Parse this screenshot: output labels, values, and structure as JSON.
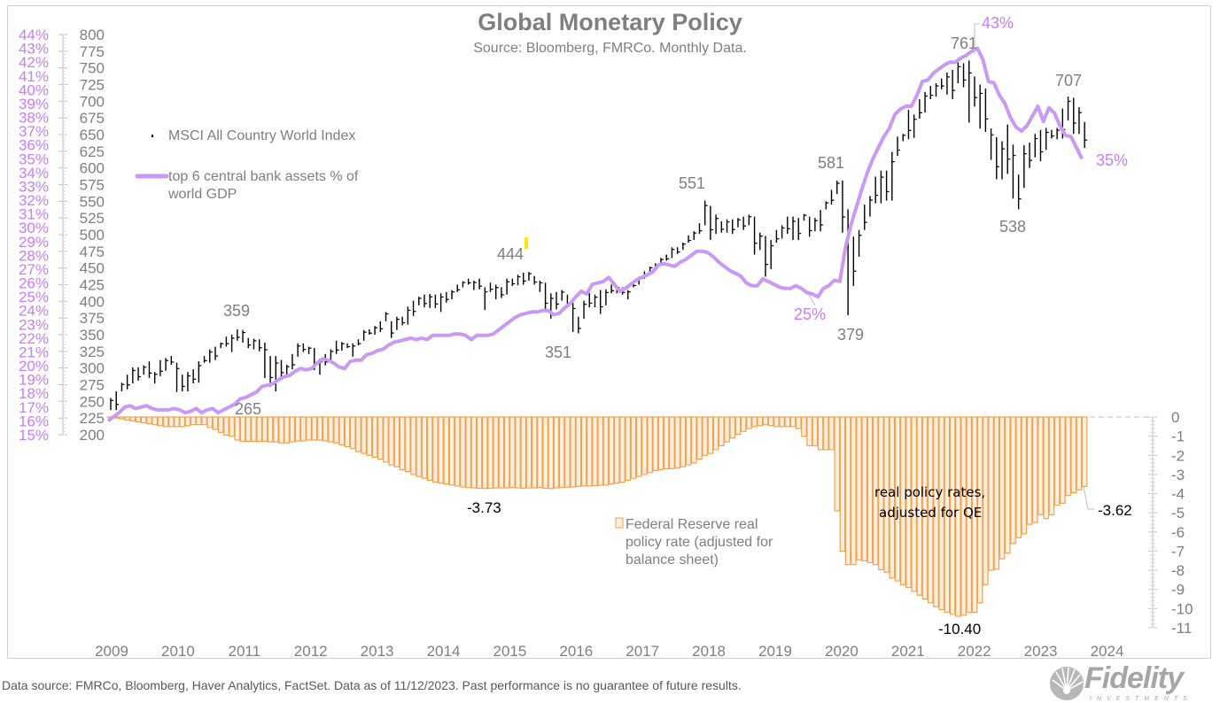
{
  "chart_data": {
    "type": "bar+line",
    "title": "Global Monetary Policy",
    "subtitle": "Source: Bloomberg, FMRCo.  Monthly Data.",
    "x_start": "2009-01",
    "x_frequency": "monthly",
    "x_tick_labels": [
      "2009",
      "2010",
      "2011",
      "2012",
      "2013",
      "2014",
      "2015",
      "2016",
      "2017",
      "2018",
      "2019",
      "2020",
      "2021",
      "2022",
      "2023",
      "2024"
    ],
    "left_axis_pct": {
      "ylim": [
        15,
        44
      ],
      "tick_labels": [
        "44%",
        "43%",
        "42%",
        "41%",
        "40%",
        "39%",
        "38%",
        "37%",
        "36%",
        "35%",
        "34%",
        "33%",
        "32%",
        "31%",
        "30%",
        "29%",
        "28%",
        "27%",
        "26%",
        "25%",
        "24%",
        "23%",
        "22%",
        "21%",
        "20%",
        "19%",
        "18%",
        "17%",
        "16%",
        "15%"
      ]
    },
    "left_axis_index": {
      "ylim": [
        200,
        800
      ],
      "tick_labels": [
        "800",
        "775",
        "750",
        "725",
        "700",
        "675",
        "650",
        "625",
        "600",
        "575",
        "550",
        "525",
        "500",
        "475",
        "450",
        "425",
        "400",
        "375",
        "350",
        "325",
        "300",
        "275",
        "250",
        "225",
        "200"
      ]
    },
    "right_axis": {
      "ylim": [
        -11,
        0
      ],
      "tick_labels": [
        "0",
        "-1",
        "-2",
        "-3",
        "-4",
        "-5",
        "-6",
        "-7",
        "-8",
        "-9",
        "-10",
        "-11"
      ]
    },
    "series": [
      {
        "name": "MSCI All Country World Index",
        "type": "high-low bars",
        "axis": "left_axis_index",
        "color": "#000000",
        "low_high": [
          [
            237,
            255
          ],
          [
            237,
            265
          ],
          [
            265,
            278
          ],
          [
            268,
            290
          ],
          [
            277,
            301
          ],
          [
            281,
            301
          ],
          [
            290,
            304
          ],
          [
            285,
            310
          ],
          [
            277,
            294
          ],
          [
            288,
            312
          ],
          [
            296,
            315
          ],
          [
            305,
            318
          ],
          [
            264,
            308
          ],
          [
            265,
            290
          ],
          [
            265,
            294
          ],
          [
            277,
            298
          ],
          [
            278,
            310
          ],
          [
            308,
            318
          ],
          [
            308,
            328
          ],
          [
            312,
            332
          ],
          [
            330,
            338
          ],
          [
            332,
            347
          ],
          [
            324,
            350
          ],
          [
            341,
            358
          ],
          [
            338,
            357
          ],
          [
            330,
            345
          ],
          [
            328,
            344
          ],
          [
            325,
            343
          ],
          [
            285,
            338
          ],
          [
            272,
            318
          ],
          [
            265,
            318
          ],
          [
            285,
            312
          ],
          [
            290,
            305
          ],
          [
            298,
            321
          ],
          [
            317,
            337
          ],
          [
            324,
            337
          ],
          [
            321,
            332
          ],
          [
            297,
            330
          ],
          [
            290,
            314
          ],
          [
            304,
            321
          ],
          [
            312,
            328
          ],
          [
            321,
            341
          ],
          [
            326,
            339
          ],
          [
            330,
            337
          ],
          [
            317,
            337
          ],
          [
            334,
            343
          ],
          [
            341,
            357
          ],
          [
            350,
            358
          ],
          [
            350,
            363
          ],
          [
            354,
            370
          ],
          [
            370,
            384
          ],
          [
            345,
            370
          ],
          [
            357,
            377
          ],
          [
            364,
            377
          ],
          [
            365,
            392
          ],
          [
            378,
            401
          ],
          [
            394,
            407
          ],
          [
            391,
            410
          ],
          [
            390,
            411
          ],
          [
            390,
            410
          ],
          [
            384,
            412
          ],
          [
            398,
            414
          ],
          [
            403,
            417
          ],
          [
            414,
            425
          ],
          [
            421,
            430
          ],
          [
            425,
            434
          ],
          [
            417,
            431
          ],
          [
            418,
            434
          ],
          [
            387,
            421
          ],
          [
            414,
            428
          ],
          [
            403,
            425
          ],
          [
            405,
            421
          ],
          [
            410,
            434
          ],
          [
            423,
            434
          ],
          [
            424,
            440
          ],
          [
            425,
            443
          ],
          [
            431,
            444
          ],
          [
            425,
            438
          ],
          [
            414,
            431
          ],
          [
            384,
            428
          ],
          [
            374,
            412
          ],
          [
            388,
            414
          ],
          [
            401,
            417
          ],
          [
            391,
            410
          ],
          [
            354,
            398
          ],
          [
            352,
            377
          ],
          [
            374,
            401
          ],
          [
            391,
            412
          ],
          [
            391,
            410
          ],
          [
            381,
            417
          ],
          [
            394,
            418
          ],
          [
            412,
            425
          ],
          [
            412,
            423
          ],
          [
            410,
            421
          ],
          [
            403,
            417
          ],
          [
            421,
            430
          ],
          [
            425,
            437
          ],
          [
            434,
            445
          ],
          [
            443,
            452
          ],
          [
            448,
            457
          ],
          [
            454,
            465
          ],
          [
            461,
            470
          ],
          [
            465,
            481
          ],
          [
            471,
            481
          ],
          [
            477,
            488
          ],
          [
            488,
            499
          ],
          [
            492,
            505
          ],
          [
            501,
            517
          ],
          [
            514,
            551
          ],
          [
            492,
            543
          ],
          [
            501,
            530
          ],
          [
            503,
            520
          ],
          [
            503,
            523
          ],
          [
            501,
            523
          ],
          [
            511,
            525
          ],
          [
            507,
            527
          ],
          [
            514,
            530
          ],
          [
            470,
            527
          ],
          [
            477,
            503
          ],
          [
            437,
            498
          ],
          [
            448,
            492
          ],
          [
            488,
            507
          ],
          [
            494,
            514
          ],
          [
            501,
            527
          ],
          [
            492,
            527
          ],
          [
            492,
            525
          ],
          [
            521,
            531
          ],
          [
            497,
            527
          ],
          [
            505,
            525
          ],
          [
            505,
            537
          ],
          [
            538,
            550
          ],
          [
            545,
            567
          ],
          [
            561,
            581
          ],
          [
            503,
            581
          ],
          [
            379,
            538
          ],
          [
            423,
            497
          ],
          [
            467,
            507
          ],
          [
            507,
            545
          ],
          [
            527,
            558
          ],
          [
            547,
            587
          ],
          [
            547,
            596
          ],
          [
            551,
            596
          ],
          [
            551,
            624
          ],
          [
            618,
            647
          ],
          [
            640,
            651
          ],
          [
            643,
            687
          ],
          [
            645,
            680
          ],
          [
            674,
            703
          ],
          [
            683,
            714
          ],
          [
            703,
            723
          ],
          [
            707,
            727
          ],
          [
            718,
            734
          ],
          [
            710,
            743
          ],
          [
            703,
            747
          ],
          [
            727,
            758
          ],
          [
            721,
            757
          ],
          [
            668,
            761
          ],
          [
            692,
            737
          ],
          [
            659,
            725
          ],
          [
            654,
            719
          ],
          [
            612,
            659
          ],
          [
            583,
            646
          ],
          [
            583,
            640
          ],
          [
            591,
            665
          ],
          [
            554,
            635
          ],
          [
            538,
            590
          ],
          [
            570,
            634
          ],
          [
            600,
            638
          ],
          [
            616,
            651
          ],
          [
            610,
            657
          ],
          [
            627,
            660
          ],
          [
            644,
            657
          ],
          [
            643,
            660
          ],
          [
            644,
            689
          ],
          [
            671,
            707
          ],
          [
            651,
            705
          ],
          [
            651,
            691
          ],
          [
            630,
            669
          ]
        ]
      },
      {
        "name": "top 6 central bank assets % of world GDP",
        "type": "line",
        "axis": "left_axis_pct",
        "color": "#c99af5",
        "values": [
          16.0,
          16.3,
          16.6,
          17.0,
          17.1,
          16.9,
          17.0,
          17.1,
          16.9,
          16.8,
          16.8,
          16.8,
          16.9,
          16.8,
          16.6,
          16.7,
          16.9,
          16.6,
          16.8,
          16.9,
          16.6,
          16.8,
          17.0,
          17.2,
          17.6,
          17.7,
          17.9,
          18.1,
          18.5,
          18.6,
          18.7,
          19.0,
          19.2,
          19.3,
          19.6,
          19.8,
          19.7,
          19.8,
          20.2,
          20.5,
          20.4,
          20.2,
          19.9,
          19.8,
          20.3,
          20.4,
          20.4,
          20.8,
          20.9,
          21.1,
          21.2,
          21.5,
          21.7,
          21.8,
          21.9,
          22.0,
          21.9,
          22.0,
          21.9,
          22.2,
          22.2,
          22.2,
          22.2,
          22.3,
          22.3,
          22.2,
          21.9,
          22.2,
          22.2,
          22.2,
          22.3,
          22.6,
          22.9,
          23.2,
          23.5,
          23.7,
          23.8,
          23.9,
          23.9,
          24.0,
          24.0,
          23.7,
          23.8,
          24.2,
          24.5,
          25.0,
          25.4,
          25.2,
          25.9,
          26.0,
          26.1,
          26.4,
          25.9,
          25.4,
          25.6,
          25.9,
          26.2,
          26.4,
          26.6,
          26.8,
          27.3,
          27.4,
          27.3,
          27.2,
          27.5,
          27.7,
          28.0,
          28.3,
          28.3,
          28.2,
          27.9,
          27.5,
          27.2,
          26.9,
          26.7,
          26.5,
          26.0,
          25.8,
          25.8,
          26.3,
          26.1,
          25.9,
          25.7,
          25.6,
          25.6,
          25.8,
          25.6,
          25.3,
          25.2,
          25.0,
          25.6,
          25.8,
          26.2,
          26.1,
          28.5,
          30.2,
          31.5,
          32.8,
          34.0,
          35.0,
          35.8,
          36.6,
          37.2,
          38.2,
          38.6,
          38.8,
          38.8,
          39.6,
          40.6,
          40.7,
          41.2,
          41.5,
          41.8,
          42.0,
          42.0,
          42.3,
          42.5,
          42.8,
          43.0,
          42.2,
          40.6,
          40.5,
          39.6,
          39.0,
          38.0,
          37.3,
          37.0,
          37.4,
          38.1,
          38.8,
          37.7,
          38.7,
          38.3,
          37.4,
          36.7,
          36.6,
          35.8,
          35.0
        ]
      },
      {
        "name": "Federal Reserve real policy rate (adjusted for balance sheet)",
        "type": "bar",
        "axis": "right_axis",
        "color": "#f4a14a",
        "fill": "#fdf0e2",
        "values": [
          0,
          -0.05,
          -0.1,
          -0.15,
          -0.2,
          -0.25,
          -0.3,
          -0.35,
          -0.4,
          -0.45,
          -0.5,
          -0.5,
          -0.5,
          -0.5,
          -0.45,
          -0.4,
          -0.4,
          -0.4,
          -0.55,
          -0.65,
          -0.8,
          -0.95,
          -1.0,
          -1.2,
          -1.27,
          -1.27,
          -1.27,
          -1.27,
          -1.27,
          -1.3,
          -1.3,
          -1.35,
          -1.35,
          -1.3,
          -1.25,
          -1.25,
          -1.2,
          -1.2,
          -1.2,
          -1.25,
          -1.3,
          -1.35,
          -1.45,
          -1.55,
          -1.65,
          -1.8,
          -1.9,
          -2.0,
          -2.1,
          -2.2,
          -2.35,
          -2.5,
          -2.6,
          -2.75,
          -2.85,
          -3.0,
          -3.1,
          -3.2,
          -3.3,
          -3.4,
          -3.45,
          -3.5,
          -3.55,
          -3.6,
          -3.65,
          -3.68,
          -3.7,
          -3.72,
          -3.73,
          -3.72,
          -3.7,
          -3.7,
          -3.7,
          -3.68,
          -3.7,
          -3.72,
          -3.7,
          -3.7,
          -3.68,
          -3.72,
          -3.73,
          -3.7,
          -3.68,
          -3.66,
          -3.65,
          -3.62,
          -3.6,
          -3.6,
          -3.58,
          -3.56,
          -3.55,
          -3.5,
          -3.45,
          -3.4,
          -3.3,
          -3.2,
          -3.1,
          -3.0,
          -2.9,
          -2.8,
          -2.75,
          -2.7,
          -2.7,
          -2.65,
          -2.6,
          -2.5,
          -2.4,
          -2.2,
          -2.0,
          -1.9,
          -1.7,
          -1.5,
          -1.3,
          -1.1,
          -0.9,
          -0.75,
          -0.6,
          -0.5,
          -0.45,
          -0.4,
          -0.45,
          -0.5,
          -0.5,
          -0.5,
          -0.5,
          -0.6,
          -1.0,
          -1.5,
          -1.5,
          -1.7,
          -1.7,
          -1.7,
          -4.9,
          -7.0,
          -7.7,
          -7.7,
          -7.45,
          -7.5,
          -7.6,
          -7.7,
          -7.97,
          -8.1,
          -8.4,
          -8.55,
          -8.75,
          -8.9,
          -9.1,
          -9.3,
          -9.5,
          -9.7,
          -9.9,
          -10.05,
          -10.2,
          -10.3,
          -10.4,
          -10.35,
          -10.2,
          -10.2,
          -9.7,
          -8.75,
          -8.0,
          -7.95,
          -7.4,
          -7.1,
          -6.6,
          -6.3,
          -6.1,
          -5.6,
          -5.5,
          -5.1,
          -5.3,
          -5.1,
          -4.6,
          -4.5,
          -4.1,
          -3.95,
          -3.8,
          -3.62
        ]
      }
    ],
    "legend": {
      "msci": "MSCI All Country World Index",
      "cb_assets": "top 6 central bank assets % of world GDP",
      "fed_rate": "Federal Reserve real policy rate (adjusted for balance sheet)"
    },
    "annotations": {
      "msci_359": "359",
      "msci_265": "265",
      "msci_444": "444",
      "msci_351": "351",
      "msci_551": "551",
      "msci_581": "581",
      "msci_379": "379",
      "msci_761": "761",
      "msci_538": "538",
      "msci_707": "707",
      "cb_25": "25%",
      "cb_43": "43%",
      "cb_35": "35%",
      "rate_373": "-3.73",
      "rate_1040": "-10.40",
      "rate_362": "-3.62",
      "qe_note_line1": "real policy rates,",
      "qe_note_line2": "adjusted for QE"
    },
    "grid": false
  },
  "footer": "Data source: FMRCo, Bloomberg, Haver Analytics, FactSet. Data as of 11/12/2023. Past performance is no guarantee of future results.",
  "logo": {
    "text": "Fidelity",
    "sub": "INVESTMENTS"
  }
}
